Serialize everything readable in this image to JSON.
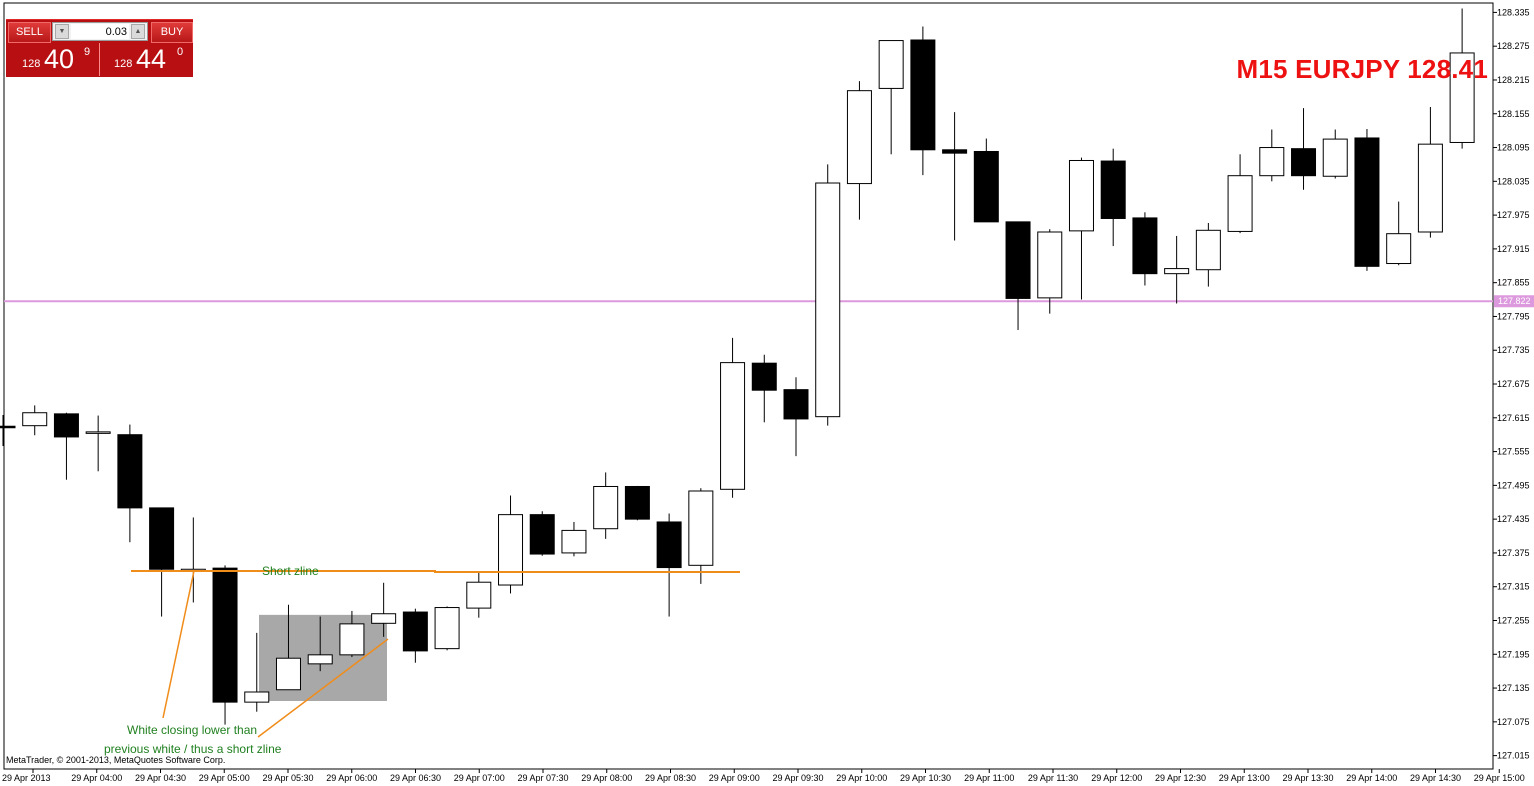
{
  "trade_panel": {
    "sell_label": "SELL",
    "buy_label": "BUY",
    "lot_value": "0.03",
    "sell_price_prefix": "128",
    "sell_price_big": "40",
    "sell_price_sup": "9",
    "buy_price_prefix": "128",
    "buy_price_big": "44",
    "buy_price_sup": "0"
  },
  "header": {
    "title": "M15 EURJPY 128.41",
    "title_color": "#ee1111"
  },
  "footer": {
    "copyright": "MetaTrader, © 2001-2013, MetaQuotes Software Corp."
  },
  "chart_data": {
    "type": "candlestick",
    "symbol": "EURJPY",
    "timeframe": "M15",
    "ylim": [
      126.985,
      128.345
    ],
    "y_ticks": [
      "128.335",
      "128.275",
      "128.215",
      "128.155",
      "128.095",
      "128.035",
      "127.975",
      "127.915",
      "127.855",
      "127.795",
      "127.735",
      "127.675",
      "127.615",
      "127.555",
      "127.495",
      "127.435",
      "127.375",
      "127.315",
      "127.255",
      "127.195",
      "127.135",
      "127.075",
      "127.015"
    ],
    "x_ticks": [
      "29 Apr 2013",
      "29 Apr 04:00",
      "29 Apr 04:30",
      "29 Apr 05:00",
      "29 Apr 05:30",
      "29 Apr 06:00",
      "29 Apr 06:30",
      "29 Apr 07:00",
      "29 Apr 07:30",
      "29 Apr 08:00",
      "29 Apr 08:30",
      "29 Apr 09:00",
      "29 Apr 09:30",
      "29 Apr 10:00",
      "29 Apr 10:30",
      "29 Apr 11:00",
      "29 Apr 11:30",
      "29 Apr 12:00",
      "29 Apr 12:30",
      "29 Apr 13:00",
      "29 Apr 13:30",
      "29 Apr 14:00",
      "29 Apr 14:30",
      "29 Apr 15:00"
    ],
    "candles": [
      {
        "o": 127.6,
        "h": 127.62,
        "l": 127.565,
        "c": 127.598
      },
      {
        "o": 127.601,
        "h": 127.637,
        "l": 127.584,
        "c": 127.624
      },
      {
        "o": 127.622,
        "h": 127.624,
        "l": 127.505,
        "c": 127.581
      },
      {
        "o": 127.588,
        "h": 127.619,
        "l": 127.52,
        "c": 127.59
      },
      {
        "o": 127.585,
        "h": 127.603,
        "l": 127.394,
        "c": 127.455
      },
      {
        "o": 127.455,
        "h": 127.454,
        "l": 127.262,
        "c": 127.346
      },
      {
        "o": 127.345,
        "h": 127.438,
        "l": 127.287,
        "c": 127.346
      },
      {
        "o": 127.348,
        "h": 127.353,
        "l": 127.07,
        "c": 127.11
      },
      {
        "o": 127.11,
        "h": 127.233,
        "l": 127.093,
        "c": 127.128
      },
      {
        "o": 127.132,
        "h": 127.283,
        "l": 127.133,
        "c": 127.188
      },
      {
        "o": 127.178,
        "h": 127.262,
        "l": 127.165,
        "c": 127.194
      },
      {
        "o": 127.194,
        "h": 127.272,
        "l": 127.19,
        "c": 127.249
      },
      {
        "o": 127.25,
        "h": 127.322,
        "l": 127.226,
        "c": 127.267
      },
      {
        "o": 127.27,
        "h": 127.276,
        "l": 127.18,
        "c": 127.201
      },
      {
        "o": 127.205,
        "h": 127.28,
        "l": 127.202,
        "c": 127.278
      },
      {
        "o": 127.277,
        "h": 127.34,
        "l": 127.26,
        "c": 127.323
      },
      {
        "o": 127.318,
        "h": 127.477,
        "l": 127.303,
        "c": 127.443
      },
      {
        "o": 127.443,
        "h": 127.449,
        "l": 127.37,
        "c": 127.373
      },
      {
        "o": 127.375,
        "h": 127.43,
        "l": 127.369,
        "c": 127.415
      },
      {
        "o": 127.418,
        "h": 127.518,
        "l": 127.4,
        "c": 127.493
      },
      {
        "o": 127.493,
        "h": 127.494,
        "l": 127.433,
        "c": 127.435
      },
      {
        "o": 127.43,
        "h": 127.445,
        "l": 127.262,
        "c": 127.349
      },
      {
        "o": 127.353,
        "h": 127.49,
        "l": 127.32,
        "c": 127.485
      },
      {
        "o": 127.488,
        "h": 127.757,
        "l": 127.473,
        "c": 127.713
      },
      {
        "o": 127.712,
        "h": 127.727,
        "l": 127.607,
        "c": 127.664
      },
      {
        "o": 127.665,
        "h": 127.687,
        "l": 127.547,
        "c": 127.613
      },
      {
        "o": 127.617,
        "h": 128.065,
        "l": 127.601,
        "c": 128.032
      },
      {
        "o": 128.031,
        "h": 128.213,
        "l": 127.967,
        "c": 128.196
      },
      {
        "o": 128.2,
        "h": 128.282,
        "l": 128.083,
        "c": 128.285
      },
      {
        "o": 128.286,
        "h": 128.31,
        "l": 128.046,
        "c": 128.091
      },
      {
        "o": 128.091,
        "h": 128.158,
        "l": 127.93,
        "c": 128.085
      },
      {
        "o": 128.088,
        "h": 128.111,
        "l": 127.963,
        "c": 127.963
      },
      {
        "o": 127.963,
        "h": 127.962,
        "l": 127.771,
        "c": 127.827
      },
      {
        "o": 127.828,
        "h": 127.95,
        "l": 127.8,
        "c": 127.945
      },
      {
        "o": 127.947,
        "h": 128.077,
        "l": 127.825,
        "c": 128.072
      },
      {
        "o": 128.071,
        "h": 128.093,
        "l": 127.92,
        "c": 127.969
      },
      {
        "o": 127.97,
        "h": 127.98,
        "l": 127.85,
        "c": 127.871
      },
      {
        "o": 127.871,
        "h": 127.938,
        "l": 127.818,
        "c": 127.88
      },
      {
        "o": 127.878,
        "h": 127.961,
        "l": 127.848,
        "c": 127.948
      },
      {
        "o": 127.946,
        "h": 128.083,
        "l": 127.943,
        "c": 128.045
      },
      {
        "o": 128.045,
        "h": 128.127,
        "l": 128.035,
        "c": 128.095
      },
      {
        "o": 128.093,
        "h": 128.165,
        "l": 128.02,
        "c": 128.045
      },
      {
        "o": 128.044,
        "h": 128.127,
        "l": 128.04,
        "c": 128.11
      },
      {
        "o": 128.112,
        "h": 128.128,
        "l": 127.876,
        "c": 127.884
      },
      {
        "o": 127.889,
        "h": 127.999,
        "l": 127.886,
        "c": 127.942
      },
      {
        "o": 127.945,
        "h": 128.167,
        "l": 127.935,
        "c": 128.101
      },
      {
        "o": 128.104,
        "h": 128.342,
        "l": 128.093,
        "c": 128.263
      }
    ],
    "horizontal_line": {
      "value": 127.822,
      "label": "127.822",
      "color": "#dd99dd"
    },
    "grey_box": {
      "from": 127.112,
      "to": 127.265
    },
    "zline": {
      "points": [
        [
          127.343
        ],
        [
          127.343
        ],
        [
          127.343
        ]
      ]
    },
    "annotations": {
      "zline_label": "Short zline",
      "note_line1": "White closing lower than",
      "note_line2": "previous white / thus a short zline",
      "annotation_color": "#208020",
      "zline_color": "#f08c1a"
    }
  }
}
